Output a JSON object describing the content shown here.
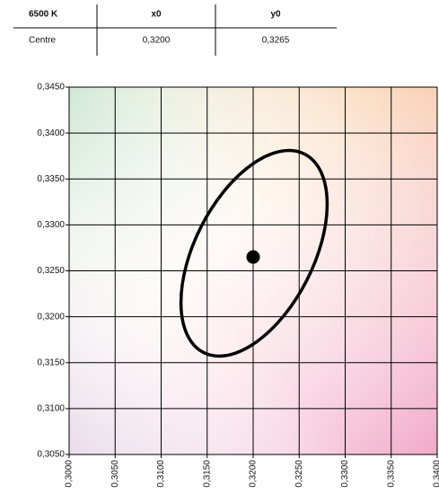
{
  "table": {
    "header": [
      "6500 K",
      "x0",
      "y0"
    ],
    "rows": [
      [
        "Centre",
        "0,3200",
        "0,3265"
      ]
    ]
  },
  "chart_data": {
    "type": "scatter",
    "series": [
      {
        "color": "#000000",
        "x": [
          0.32
        ],
        "y": [
          0.3265
        ]
      }
    ],
    "xlim": [
      0.3,
      0.34
    ],
    "xticks": [
      {
        "value": 0.3,
        "label": "0,3000"
      },
      {
        "value": 0.305,
        "label": "0,3050"
      },
      {
        "value": 0.31,
        "label": "0,3100"
      },
      {
        "value": 0.315,
        "label": "0,3150"
      },
      {
        "value": 0.32,
        "label": "0,3200"
      },
      {
        "value": 0.325,
        "label": "0,3250"
      },
      {
        "value": 0.33,
        "label": "0,3300"
      },
      {
        "value": 0.335,
        "label": "0,3350"
      },
      {
        "value": 0.34,
        "label": "0,3400"
      }
    ],
    "ylim": [
      0.305,
      0.345
    ],
    "yticks": [
      {
        "value": 0.305,
        "label": "0,3050"
      },
      {
        "value": 0.31,
        "label": "0,3100"
      },
      {
        "value": 0.315,
        "label": "0,3150"
      },
      {
        "value": 0.32,
        "label": "0,3200"
      },
      {
        "value": 0.325,
        "label": "0,3250"
      },
      {
        "value": 0.33,
        "label": "0,3300"
      },
      {
        "value": 0.335,
        "label": "0,3350"
      },
      {
        "value": 0.34,
        "label": "0,3400"
      },
      {
        "value": 0.345,
        "label": "0,3450"
      }
    ],
    "grid": true
  }
}
